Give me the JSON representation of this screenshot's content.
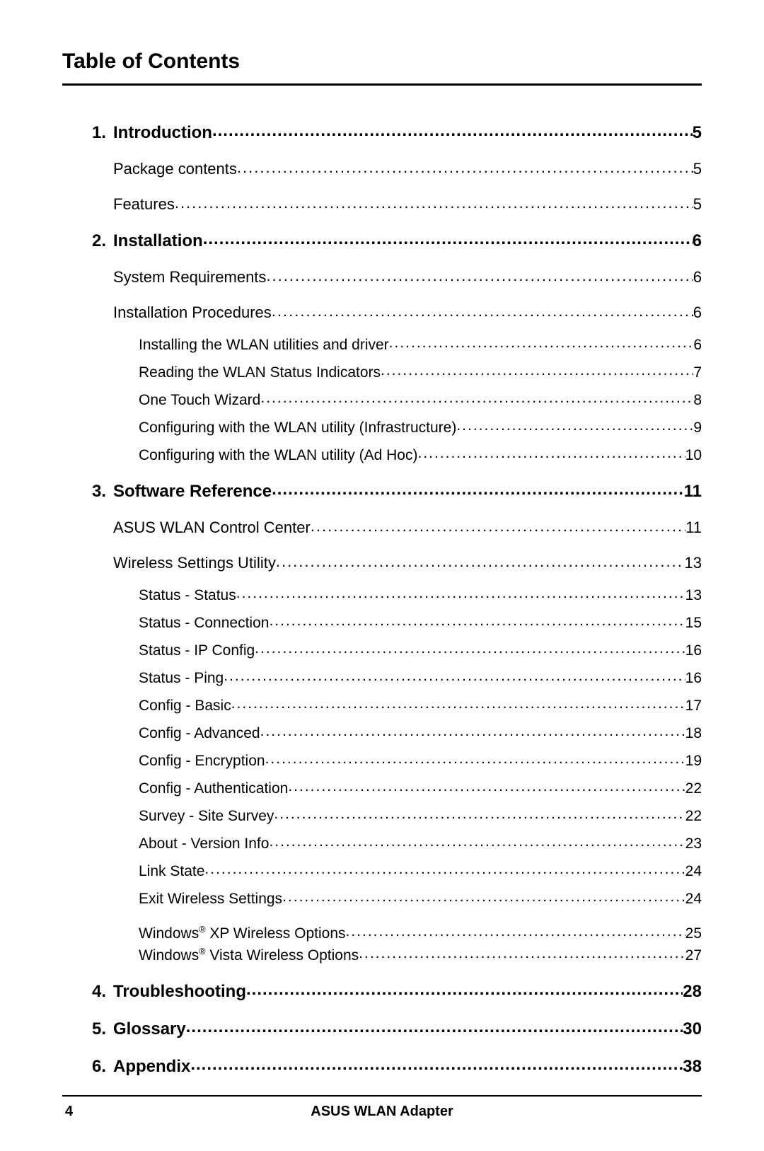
{
  "title": "Table of Contents",
  "footer": {
    "page": "4",
    "product": "ASUS WLAN Adapter"
  },
  "entries": [
    {
      "level": 1,
      "num": "1.",
      "label": "Introduction",
      "page": "5",
      "bold": true
    },
    {
      "level": 2,
      "label": "Package contents",
      "page": "5"
    },
    {
      "level": 2,
      "label": "Features",
      "page": "5"
    },
    {
      "level": 1,
      "num": "2.",
      "label": "Installation",
      "page": "6",
      "bold": true
    },
    {
      "level": 2,
      "label": "System Requirements",
      "page": "6"
    },
    {
      "level": 2,
      "label": "Installation Procedures",
      "page": "6"
    },
    {
      "level": 3,
      "label": "Installing the WLAN utilities and driver",
      "page": "6",
      "first": true
    },
    {
      "level": 3,
      "label": "Reading the WLAN Status Indicators",
      "page": "7"
    },
    {
      "level": 3,
      "label": "One Touch Wizard",
      "page": "8"
    },
    {
      "level": 3,
      "label": "Configuring with the WLAN utility (Infrastructure)",
      "page": "9"
    },
    {
      "level": 3,
      "label": "Configuring with the WLAN utility (Ad Hoc)",
      "page": "10"
    },
    {
      "level": 1,
      "num": "3.",
      "label": "Software Reference",
      "page": "11",
      "bold": true
    },
    {
      "level": 2,
      "label": "ASUS WLAN Control Center",
      "page": "11"
    },
    {
      "level": 2,
      "label": "Wireless Settings Utility",
      "page": "13"
    },
    {
      "level": 3,
      "label": "Status - Status",
      "page": "13",
      "first": true
    },
    {
      "level": 3,
      "label": "Status - Connection",
      "page": "15"
    },
    {
      "level": 3,
      "label": "Status - IP Config",
      "page": "16"
    },
    {
      "level": 3,
      "label": "Status - Ping",
      "page": "16"
    },
    {
      "level": 3,
      "label": "Config - Basic",
      "page": "17"
    },
    {
      "level": 3,
      "label": "Config - Advanced",
      "page": "18"
    },
    {
      "level": 3,
      "label": "Config - Encryption",
      "page": "19"
    },
    {
      "level": 3,
      "label": "Config - Authentication",
      "page": "22"
    },
    {
      "level": 3,
      "label": "Survey - Site Survey",
      "page": "22"
    },
    {
      "level": 3,
      "label": "About - Version Info",
      "page": "23"
    },
    {
      "level": 3,
      "label": "Link State",
      "page": "24"
    },
    {
      "level": 3,
      "label": "Exit Wireless Settings",
      "page": "24"
    },
    {
      "level": 3,
      "label_html": "Windows<span class=\"sup\">®</span> XP Wireless Options",
      "page": "25",
      "extra_top": true
    },
    {
      "level": 3,
      "label_html": "Windows<span class=\"sup\">®</span> Vista Wireless Options",
      "page": "27",
      "tight": true
    },
    {
      "level": 1,
      "num": "4.",
      "label": "Troubleshooting",
      "page": "28",
      "bold": true
    },
    {
      "level": 1,
      "num": "5.",
      "label": "Glossary",
      "page": "30",
      "bold": true
    },
    {
      "level": 1,
      "num": "6.",
      "label": "Appendix",
      "page": "38",
      "bold": true
    }
  ]
}
